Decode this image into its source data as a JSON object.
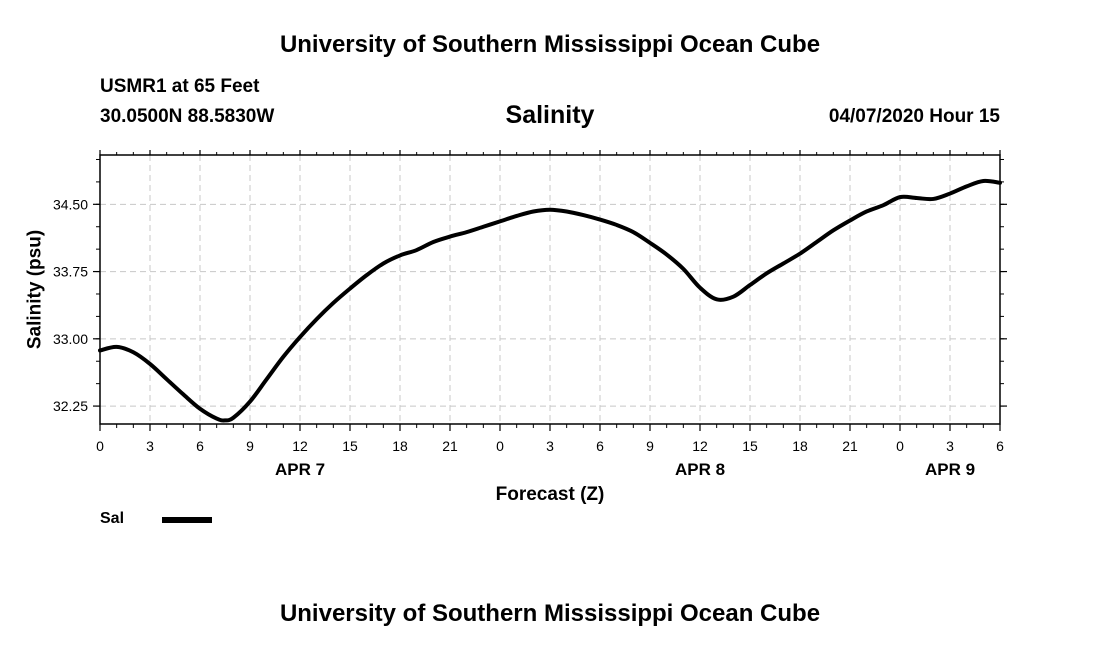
{
  "header": {
    "title_top": "University of Southern Mississippi Ocean Cube",
    "title_bottom": "University of Southern Mississippi Ocean Cube",
    "station": "USMR1 at 65 Feet",
    "coords": "30.0500N 88.5830W",
    "timestamp": "04/07/2020 Hour 15"
  },
  "chart_data": {
    "type": "line",
    "title": "Salinity",
    "xlabel": "Forecast (Z)",
    "ylabel": "Salinity (psu)",
    "xlim": [
      0,
      54
    ],
    "ylim": [
      32.05,
      35.05
    ],
    "x_ticks": [
      0,
      3,
      6,
      9,
      12,
      15,
      18,
      21,
      24,
      27,
      30,
      33,
      36,
      39,
      42,
      45,
      48,
      51,
      54
    ],
    "x_tick_labels": [
      "0",
      "3",
      "6",
      "9",
      "12",
      "15",
      "18",
      "21",
      "0",
      "3",
      "6",
      "9",
      "12",
      "15",
      "18",
      "21",
      "0",
      "3",
      "6"
    ],
    "y_ticks": [
      32.25,
      33.0,
      33.75,
      34.5
    ],
    "y_tick_labels": [
      "32.25",
      "33.00",
      "33.75",
      "34.50"
    ],
    "date_labels": [
      {
        "x": 12,
        "label": "APR 7"
      },
      {
        "x": 36,
        "label": "APR 8"
      },
      {
        "x": 51,
        "label": "APR 9"
      }
    ],
    "grid": true,
    "legend": "bottom-left",
    "series": [
      {
        "name": "Sal",
        "color": "#000000",
        "x": [
          0,
          1,
          2,
          3,
          4,
          5,
          6,
          7,
          7.5,
          8,
          9,
          10,
          11,
          12,
          13,
          14,
          15,
          16,
          17,
          18,
          19,
          20,
          21,
          22,
          23,
          24,
          25,
          26,
          27,
          28,
          29,
          30,
          31,
          32,
          33,
          34,
          35,
          36,
          37,
          38,
          39,
          40,
          41,
          42,
          43,
          44,
          45,
          46,
          47,
          48,
          49,
          50,
          51,
          52,
          53,
          54
        ],
        "y": [
          32.87,
          32.91,
          32.85,
          32.72,
          32.55,
          32.38,
          32.22,
          32.11,
          32.09,
          32.12,
          32.3,
          32.55,
          32.8,
          33.02,
          33.22,
          33.4,
          33.56,
          33.71,
          33.84,
          33.93,
          33.99,
          34.08,
          34.14,
          34.19,
          34.25,
          34.31,
          34.37,
          34.42,
          34.44,
          34.42,
          34.38,
          34.33,
          34.27,
          34.19,
          34.07,
          33.94,
          33.78,
          33.57,
          33.44,
          33.47,
          33.6,
          33.73,
          33.84,
          33.95,
          34.08,
          34.21,
          34.32,
          34.42,
          34.49,
          34.58,
          34.57,
          34.56,
          34.62,
          34.7,
          34.76,
          34.74
        ]
      }
    ]
  }
}
